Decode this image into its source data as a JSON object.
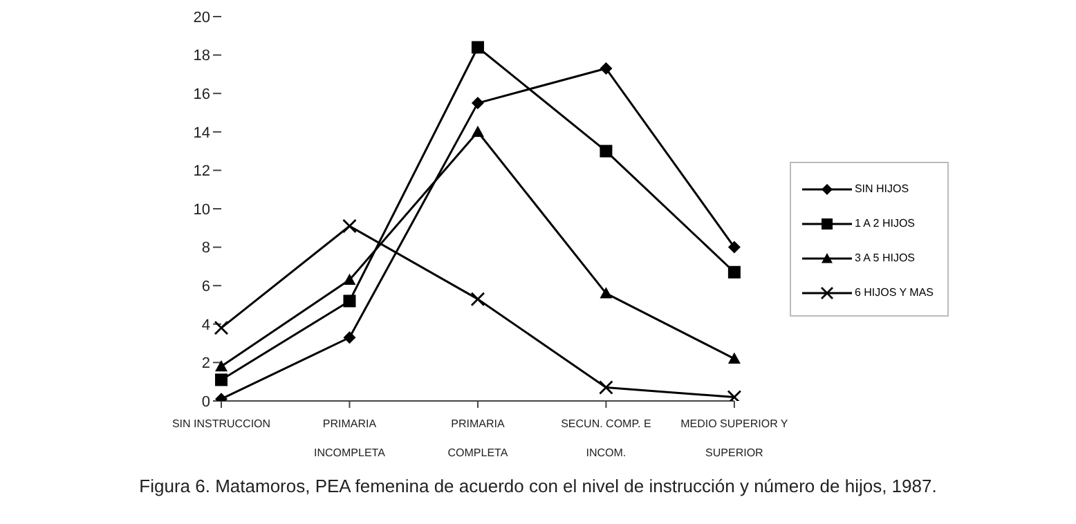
{
  "chart_data": {
    "type": "line",
    "title": "Figura 6. Matamoros, PEA femenina de acuerdo con el nivel de instrucción y número de hijos, 1987.",
    "categories": [
      "SIN INSTRUCCION",
      "PRIMARIA INCOMPLETA",
      "PRIMARIA COMPLETA",
      "SECUN. COMP. E INCOM.",
      "MEDIO SUPERIOR Y SUPERIOR"
    ],
    "series": [
      {
        "name": "SIN HIJOS",
        "color": "#000000",
        "marker": "diamond",
        "values": [
          0.1,
          3.3,
          15.5,
          17.3,
          8.0
        ]
      },
      {
        "name": "1 A 2 HIJOS",
        "color": "#000000",
        "marker": "square",
        "values": [
          1.1,
          5.2,
          18.4,
          13.0,
          6.7
        ]
      },
      {
        "name": "3 A 5 HIJOS",
        "color": "#000000",
        "marker": "triangle",
        "values": [
          1.8,
          6.3,
          14.0,
          5.6,
          2.2
        ]
      },
      {
        "name": "6 HIJOS Y MAS",
        "color": "#000000",
        "marker": "cross",
        "values": [
          3.8,
          9.1,
          5.3,
          0.7,
          0.2
        ]
      }
    ],
    "ylim": [
      0,
      20
    ],
    "yticks": [
      0,
      2,
      4,
      6,
      8,
      10,
      12,
      14,
      16,
      18,
      20
    ],
    "grid": false,
    "legend": "right",
    "line_style": "solid"
  }
}
